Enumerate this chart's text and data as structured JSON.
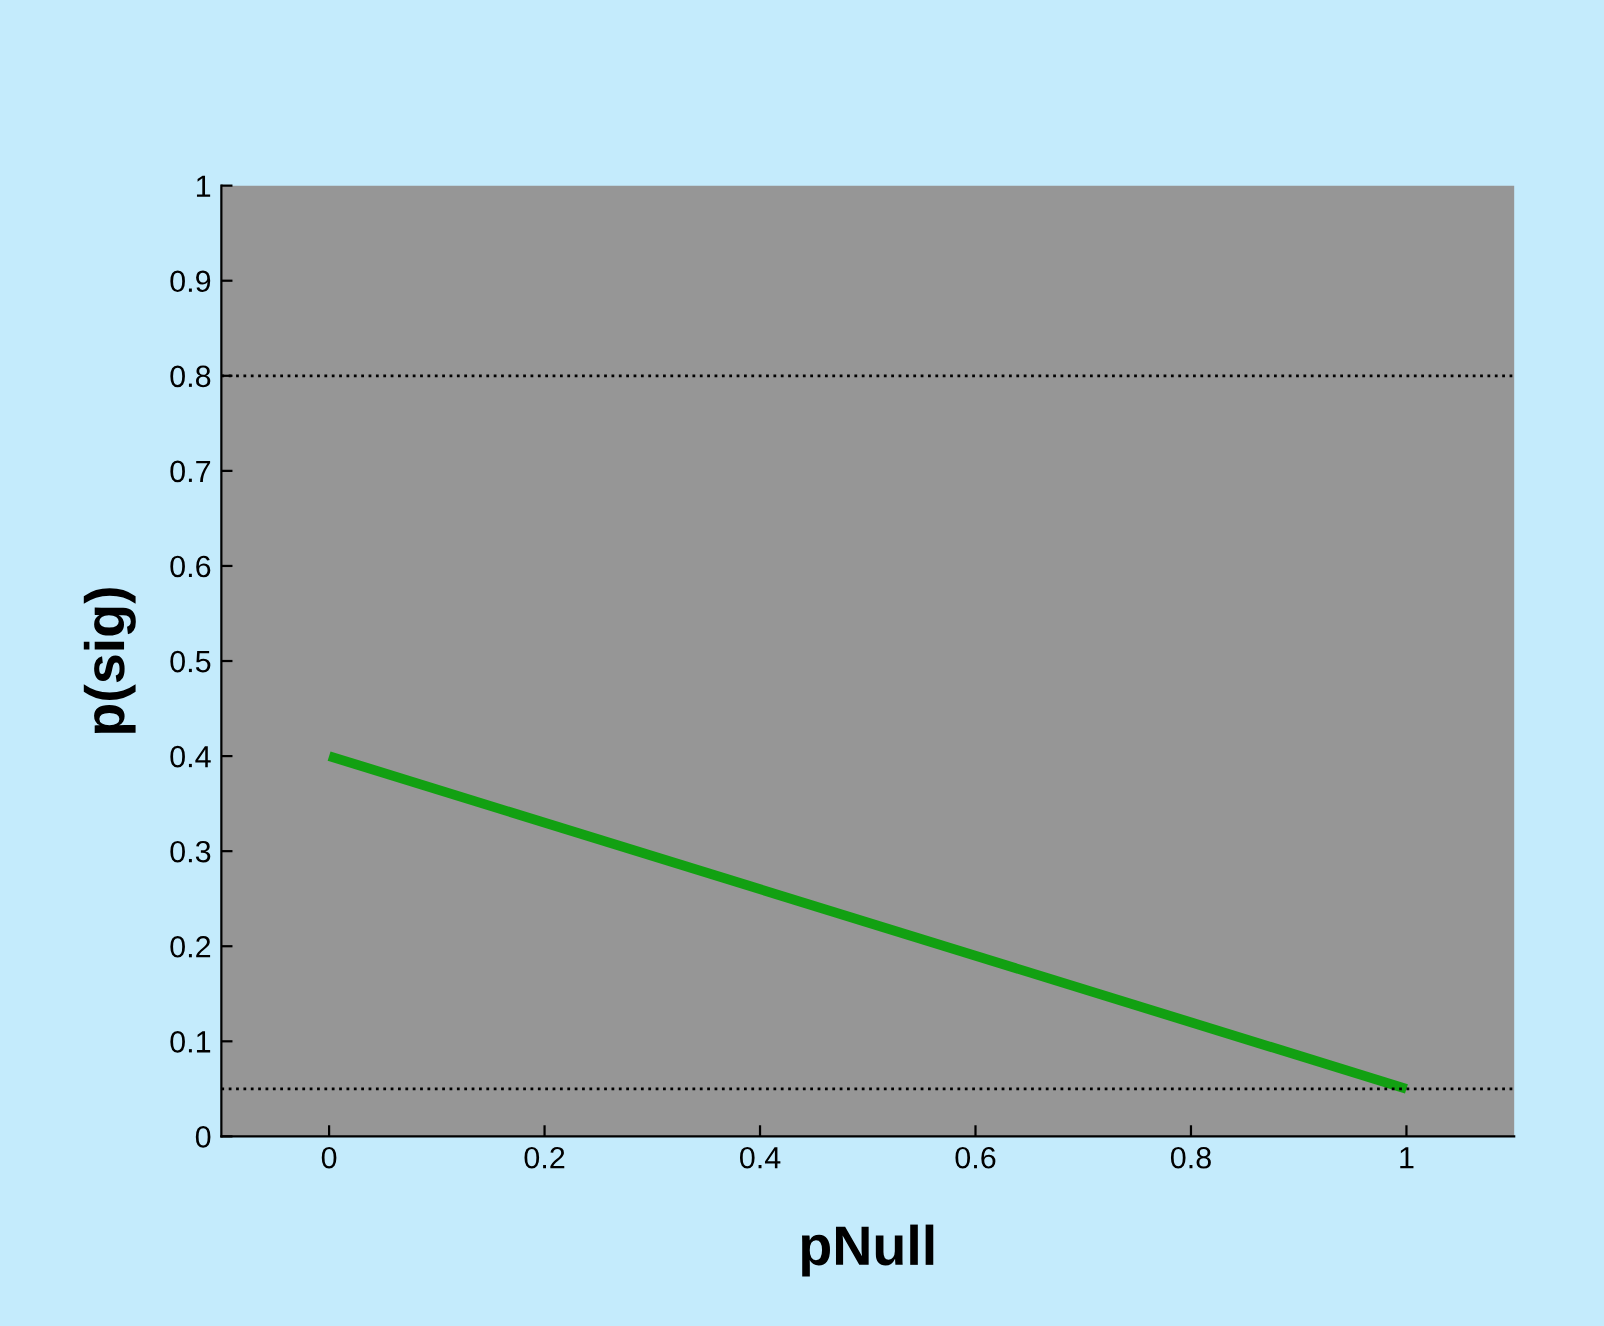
{
  "chart_data": {
    "type": "line",
    "xlabel": "pNull",
    "ylabel": "p(sig)",
    "x": [
      0,
      1
    ],
    "series": [
      {
        "color": "#12a012",
        "values": [
          0.4,
          0.05
        ]
      }
    ],
    "xlim": [
      -0.1,
      1.1
    ],
    "ylim": [
      0,
      1
    ],
    "xticks": [
      0,
      0.2,
      0.4,
      0.6,
      0.8,
      1
    ],
    "yticks": [
      0,
      0.1,
      0.2,
      0.3,
      0.4,
      0.5,
      0.6,
      0.7,
      0.8,
      0.9,
      1
    ],
    "ref_lines": [
      {
        "axis": "y",
        "value": 0.8,
        "color": "#000000",
        "line_style": "dotted"
      },
      {
        "axis": "y",
        "value": 0.05,
        "color": "#000000",
        "line_style": "dotted"
      }
    ],
    "grid": false,
    "legend": false,
    "marker": "none",
    "line_style": "solid"
  }
}
